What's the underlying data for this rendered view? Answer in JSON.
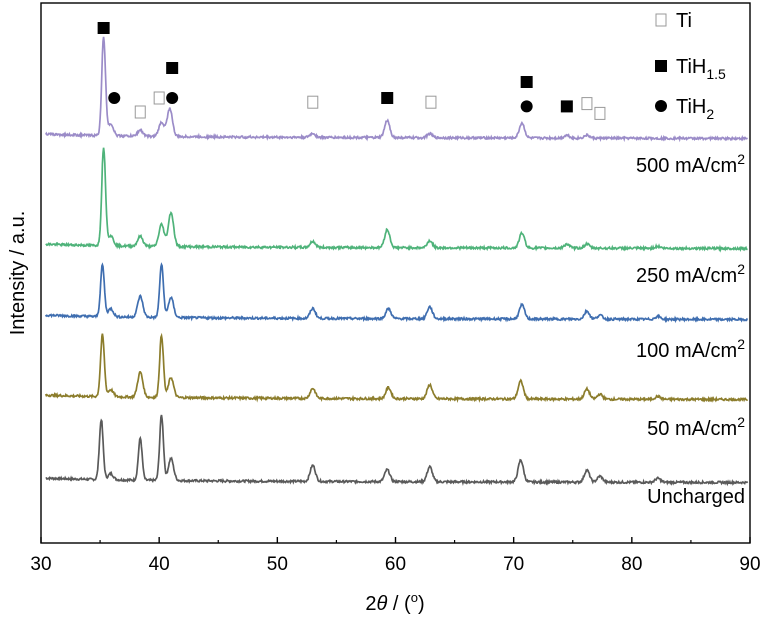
{
  "chart_data": {
    "type": "line",
    "xlabel_parts": [
      "2",
      "θ",
      " / (",
      "o",
      ")"
    ],
    "ylabel": "Intensity / a.u.",
    "xlim": [
      30,
      90
    ],
    "xticks": [
      30,
      40,
      50,
      60,
      70,
      80,
      90
    ],
    "grid": false,
    "legend": {
      "placement": "top-right",
      "entries": [
        {
          "symbol": "open-square",
          "text": "Ti",
          "sub": ""
        },
        {
          "symbol": "filled-square",
          "text": "TiH",
          "sub": "1.5"
        },
        {
          "symbol": "filled-circle",
          "text": "TiH",
          "sub": "2"
        }
      ]
    },
    "series": [
      {
        "name": "Uncharged",
        "label_unit": "",
        "label_sup": "",
        "color": "#5a5a5a",
        "baseline": 0,
        "peaks": [
          [
            35.1,
            60
          ],
          [
            35.9,
            6
          ],
          [
            38.4,
            42
          ],
          [
            40.2,
            65
          ],
          [
            41.0,
            22
          ],
          [
            53.0,
            16
          ],
          [
            59.3,
            12
          ],
          [
            62.9,
            15
          ],
          [
            70.6,
            22
          ],
          [
            76.2,
            12
          ],
          [
            77.3,
            6
          ],
          [
            82.2,
            4
          ]
        ]
      },
      {
        "name": "50",
        "label_unit": " mA/cm",
        "label_sup": "2",
        "color": "#8c7d2c",
        "baseline": 1,
        "peaks": [
          [
            35.2,
            62
          ],
          [
            35.9,
            7
          ],
          [
            38.4,
            25
          ],
          [
            40.2,
            62
          ],
          [
            41.0,
            20
          ],
          [
            53.0,
            10
          ],
          [
            59.4,
            11
          ],
          [
            62.9,
            14
          ],
          [
            70.6,
            18
          ],
          [
            76.2,
            10
          ],
          [
            77.3,
            5
          ],
          [
            82.2,
            3
          ]
        ]
      },
      {
        "name": "100",
        "label_unit": " mA/cm",
        "label_sup": "2",
        "color": "#3f6eb0",
        "baseline": 2,
        "peaks": [
          [
            35.2,
            52
          ],
          [
            35.9,
            8
          ],
          [
            38.4,
            21
          ],
          [
            40.2,
            53
          ],
          [
            41.0,
            20
          ],
          [
            53.0,
            10
          ],
          [
            59.4,
            10
          ],
          [
            62.9,
            12
          ],
          [
            70.7,
            14
          ],
          [
            76.2,
            8
          ],
          [
            77.3,
            4
          ],
          [
            82.2,
            3
          ]
        ]
      },
      {
        "name": "250",
        "label_unit": " mA/cm",
        "label_sup": "2",
        "color": "#4fb37a",
        "baseline": 3,
        "peaks": [
          [
            35.3,
            98
          ],
          [
            35.9,
            10
          ],
          [
            38.4,
            10
          ],
          [
            40.2,
            22
          ],
          [
            41.0,
            34
          ],
          [
            53.0,
            6
          ],
          [
            59.3,
            18
          ],
          [
            62.9,
            7
          ],
          [
            70.7,
            15
          ],
          [
            74.5,
            4
          ],
          [
            76.2,
            4
          ],
          [
            82.2,
            2
          ]
        ]
      },
      {
        "name": "500",
        "label_unit": " mA/cm",
        "label_sup": "2",
        "color": "#9b8cc8",
        "baseline": 4,
        "peaks": [
          [
            35.3,
            98
          ],
          [
            35.9,
            12
          ],
          [
            38.4,
            6
          ],
          [
            40.2,
            14
          ],
          [
            40.9,
            28
          ],
          [
            53.0,
            4
          ],
          [
            59.3,
            17
          ],
          [
            62.9,
            4
          ],
          [
            70.7,
            15
          ],
          [
            74.5,
            3
          ],
          [
            76.2,
            3
          ]
        ]
      }
    ],
    "markers": [
      {
        "symbol": "filled-square",
        "x": 35.3,
        "level": 0
      },
      {
        "symbol": "filled-circle",
        "x": 36.2,
        "level": 3
      },
      {
        "symbol": "open-square",
        "x": 38.4,
        "level": 4
      },
      {
        "symbol": "open-square",
        "x": 40.0,
        "level": 3
      },
      {
        "symbol": "filled-square",
        "x": 41.1,
        "level": 1
      },
      {
        "symbol": "filled-circle",
        "x": 41.1,
        "level": 3
      },
      {
        "symbol": "open-square",
        "x": 53.0,
        "level": 3.3
      },
      {
        "symbol": "filled-square",
        "x": 59.3,
        "level": 3
      },
      {
        "symbol": "open-square",
        "x": 63.0,
        "level": 3.3
      },
      {
        "symbol": "filled-square",
        "x": 71.1,
        "level": 2
      },
      {
        "symbol": "filled-circle",
        "x": 71.1,
        "level": 3.6
      },
      {
        "symbol": "filled-square",
        "x": 74.5,
        "level": 3.6
      },
      {
        "symbol": "open-square",
        "x": 76.2,
        "level": 3.4
      },
      {
        "symbol": "open-square",
        "x": 77.3,
        "level": 4.1
      }
    ]
  }
}
